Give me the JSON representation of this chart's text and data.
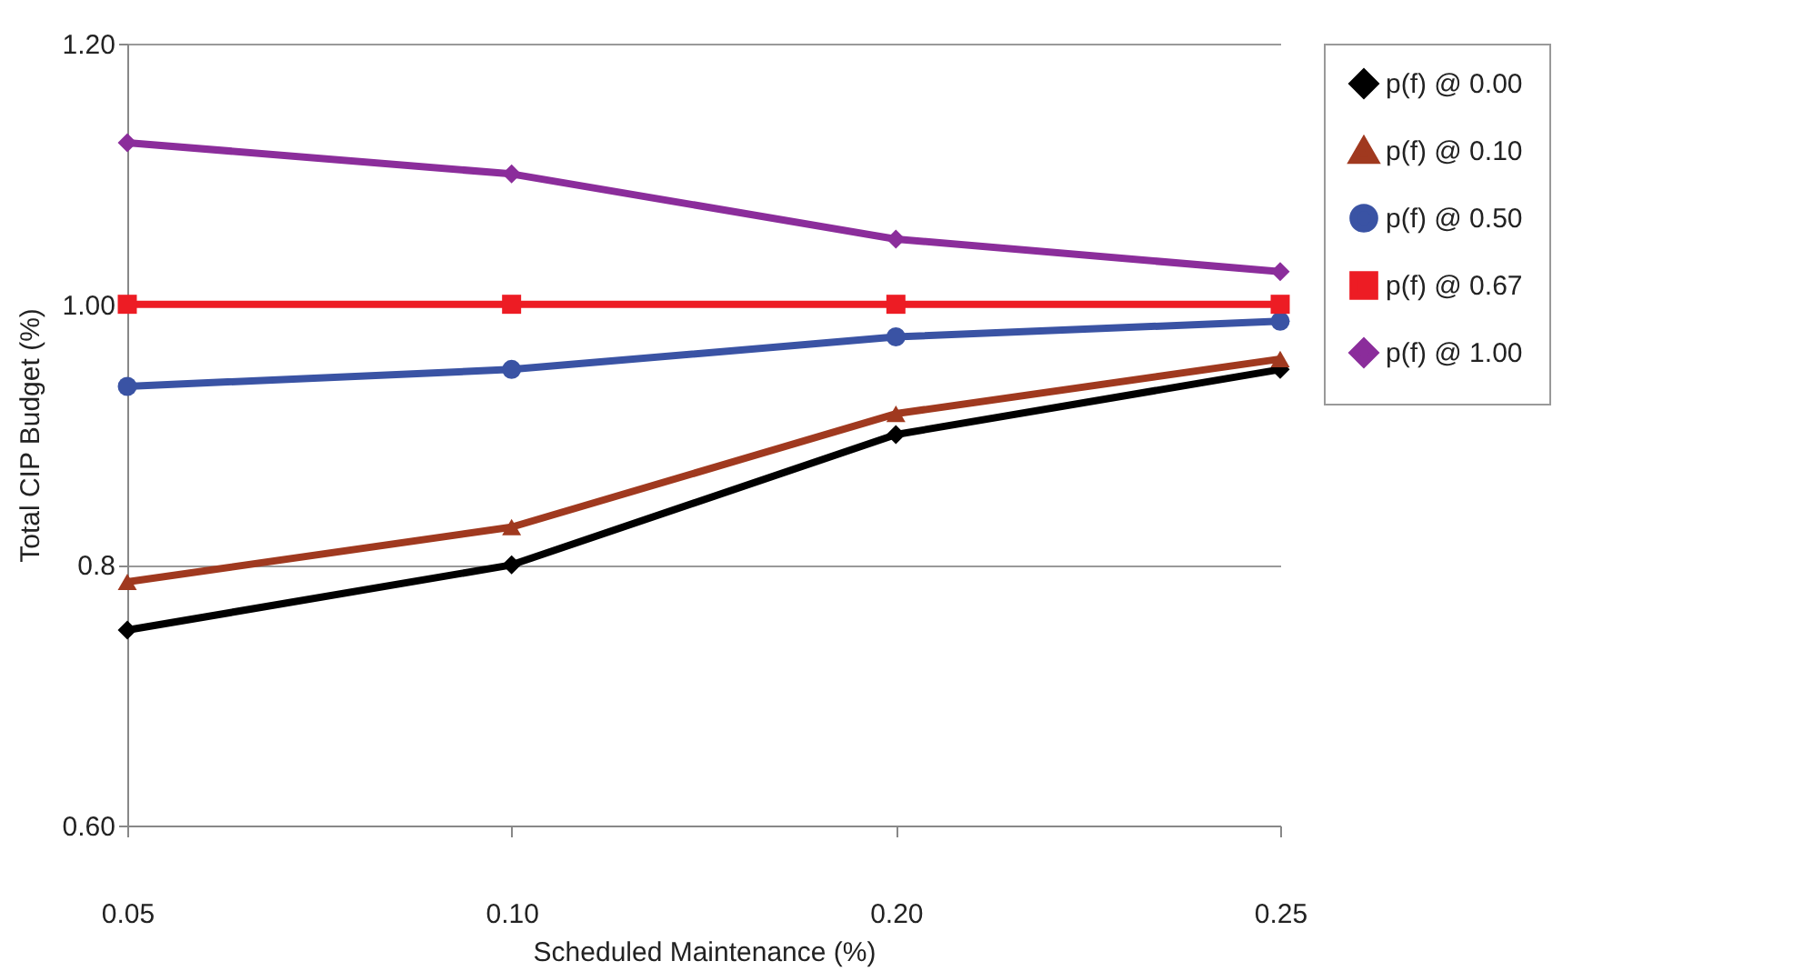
{
  "chart_data": {
    "type": "line",
    "xlabel": "Scheduled Maintenance (%)",
    "ylabel": "Total CIP Budget (%)",
    "categories": [
      "0.05",
      "0.10",
      "0.20",
      "0.25"
    ],
    "ylim": [
      0.6,
      1.2
    ],
    "yticks": [
      {
        "value": 0.6,
        "label": "0.60"
      },
      0.8,
      {
        "value": 1.0,
        "label": "1.00"
      },
      {
        "value": 1.2,
        "label": "1.20"
      }
    ],
    "grid": "y",
    "legend": "top right",
    "series": [
      {
        "name": "p(f) @ 0.00",
        "color": "#000000",
        "marker": "diamond",
        "values": [
          0.75,
          0.8,
          0.9,
          0.95
        ]
      },
      {
        "name": "p(f) @ 0.10",
        "color": "#a0391f",
        "marker": "triangle",
        "values": [
          0.787,
          0.829,
          0.916,
          0.958
        ]
      },
      {
        "name": "p(f) @ 0.50",
        "color": "#3a53a4",
        "marker": "circle",
        "values": [
          0.937,
          0.95,
          0.975,
          0.987
        ]
      },
      {
        "name": "p(f) @ 0.67",
        "color": "#ed1c24",
        "marker": "square",
        "values": [
          1.0,
          1.0,
          1.0,
          1.0
        ]
      },
      {
        "name": "p(f) @ 1.00",
        "color": "#8b2d9b",
        "marker": "diamond",
        "values": [
          1.124,
          1.1,
          1.05,
          1.025
        ]
      }
    ]
  }
}
